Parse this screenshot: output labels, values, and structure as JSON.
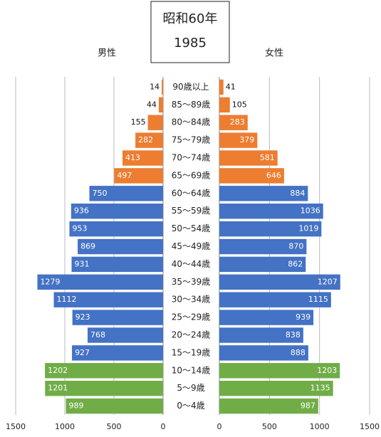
{
  "chart_data": {
    "type": "pyramid",
    "title": "昭和60年",
    "subtitle": "1985",
    "categories": [
      "90歳以上",
      "85～89歳",
      "80～84歳",
      "75～79歳",
      "70～74歳",
      "65～69歳",
      "60～64歳",
      "55～59歳",
      "50～54歳",
      "45～49歳",
      "40～44歳",
      "35～39歳",
      "30～34歳",
      "25～29歳",
      "20～24歳",
      "15～19歳",
      "10～14歳",
      "5～9歳",
      "0～4歳"
    ],
    "category_colors": [
      "#ed7d31",
      "#ed7d31",
      "#ed7d31",
      "#ed7d31",
      "#ed7d31",
      "#ed7d31",
      "#4472c4",
      "#4472c4",
      "#4472c4",
      "#4472c4",
      "#4472c4",
      "#4472c4",
      "#4472c4",
      "#4472c4",
      "#4472c4",
      "#4472c4",
      "#70ad47",
      "#70ad47",
      "#70ad47"
    ],
    "series": [
      {
        "name": "男性",
        "side": "left",
        "values": [
          14,
          44,
          155,
          282,
          413,
          497,
          750,
          936,
          953,
          869,
          931,
          1279,
          1112,
          923,
          768,
          927,
          1202,
          1201,
          989
        ]
      },
      {
        "name": "女性",
        "side": "right",
        "values": [
          41,
          105,
          283,
          379,
          581,
          646,
          884,
          1036,
          1019,
          870,
          862,
          1207,
          1115,
          939,
          838,
          888,
          1203,
          1135,
          987
        ]
      }
    ],
    "xlim": [
      0,
      1500
    ],
    "xticks": [
      0,
      500,
      1000,
      1500
    ],
    "grid": true
  }
}
